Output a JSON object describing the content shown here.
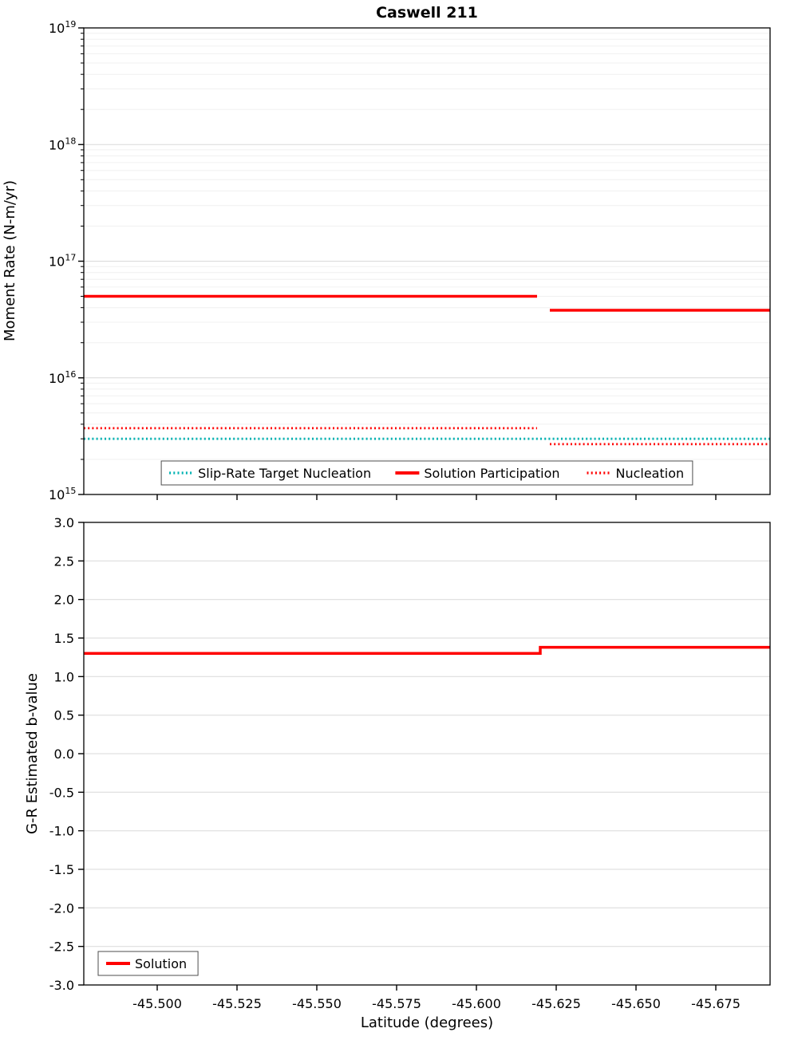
{
  "colors": {
    "red": "#ff0000",
    "cyan": "#00b2b2",
    "grid_major": "#d9d9d9",
    "grid_minor": "#f0f0f0",
    "axis": "#000000",
    "legend_border": "#4d4d4d"
  },
  "chart_data": [
    {
      "type": "line",
      "title": "Caswell 211",
      "xlabel": "",
      "ylabel": "Moment Rate (N-m/yr)",
      "x_axis": {
        "min": -45.477,
        "max": -45.692,
        "reversed": true,
        "ticks": [
          -45.5,
          -45.525,
          -45.55,
          -45.575,
          -45.6,
          -45.625,
          -45.65,
          -45.675
        ],
        "tick_labels": [
          "-45.500",
          "-45.525",
          "-45.550",
          "-45.575",
          "-45.600",
          "-45.625",
          "-45.650",
          "-45.675"
        ],
        "show_tick_labels": false
      },
      "y_axis": {
        "scale": "log",
        "min": 1000000000000000.0,
        "max": 1e+19,
        "tick_exponents": [
          15,
          16,
          17,
          18,
          19
        ]
      },
      "grid": {
        "horizontal": true,
        "vertical": false,
        "minor_log": true
      },
      "legend": {
        "position": "bottom-center-inside",
        "entries": [
          "Slip-Rate Target Nucleation",
          "Solution Participation",
          "Nucleation"
        ]
      },
      "series": [
        {
          "name": "Slip-Rate Target Nucleation",
          "color_key": "cyan",
          "line_style": "dotted",
          "width": 2.8,
          "segments": [
            [
              [
                -45.477,
                3000000000000000.0
              ],
              [
                -45.692,
                3000000000000000.0
              ]
            ]
          ]
        },
        {
          "name": "Solution Participation",
          "color_key": "red",
          "line_style": "solid",
          "width": 3.5,
          "segments": [
            [
              [
                -45.477,
                5e+16
              ],
              [
                -45.619,
                5e+16
              ]
            ],
            [
              [
                -45.623,
                3.8e+16
              ],
              [
                -45.692,
                3.8e+16
              ]
            ]
          ]
        },
        {
          "name": "Nucleation",
          "color_key": "red",
          "line_style": "dotted",
          "width": 2.8,
          "segments": [
            [
              [
                -45.477,
                3700000000000000.0
              ],
              [
                -45.619,
                3700000000000000.0
              ]
            ],
            [
              [
                -45.623,
                2700000000000000.0
              ],
              [
                -45.692,
                2700000000000000.0
              ]
            ]
          ]
        }
      ]
    },
    {
      "type": "line",
      "title": "",
      "xlabel": "Latitude (degrees)",
      "ylabel": "G-R Estimated b-value",
      "x_axis": {
        "min": -45.477,
        "max": -45.692,
        "reversed": true,
        "ticks": [
          -45.5,
          -45.525,
          -45.55,
          -45.575,
          -45.6,
          -45.625,
          -45.65,
          -45.675
        ],
        "tick_labels": [
          "-45.500",
          "-45.525",
          "-45.550",
          "-45.575",
          "-45.600",
          "-45.625",
          "-45.650",
          "-45.675"
        ],
        "show_tick_labels": true
      },
      "y_axis": {
        "scale": "linear",
        "min": -3.0,
        "max": 3.0,
        "ticks": [
          3.0,
          2.5,
          2.0,
          1.5,
          1.0,
          0.5,
          0.0,
          -0.5,
          -1.0,
          -1.5,
          -2.0,
          -2.5,
          -3.0
        ],
        "tick_labels": [
          "3.0",
          "2.5",
          "2.0",
          "1.5",
          "1.0",
          "0.5",
          "0.0",
          "-0.5",
          "-1.0",
          "-1.5",
          "-2.0",
          "-2.5",
          "-3.0"
        ]
      },
      "grid": {
        "horizontal": true,
        "vertical": false,
        "minor_log": false
      },
      "legend": {
        "position": "bottom-left-inside",
        "entries": [
          "Solution"
        ]
      },
      "series": [
        {
          "name": "Solution",
          "color_key": "red",
          "line_style": "solid",
          "width": 3.5,
          "segments": [
            [
              [
                -45.477,
                1.3
              ],
              [
                -45.62,
                1.3
              ],
              [
                -45.62,
                1.38
              ],
              [
                -45.692,
                1.38
              ]
            ]
          ]
        }
      ]
    }
  ]
}
